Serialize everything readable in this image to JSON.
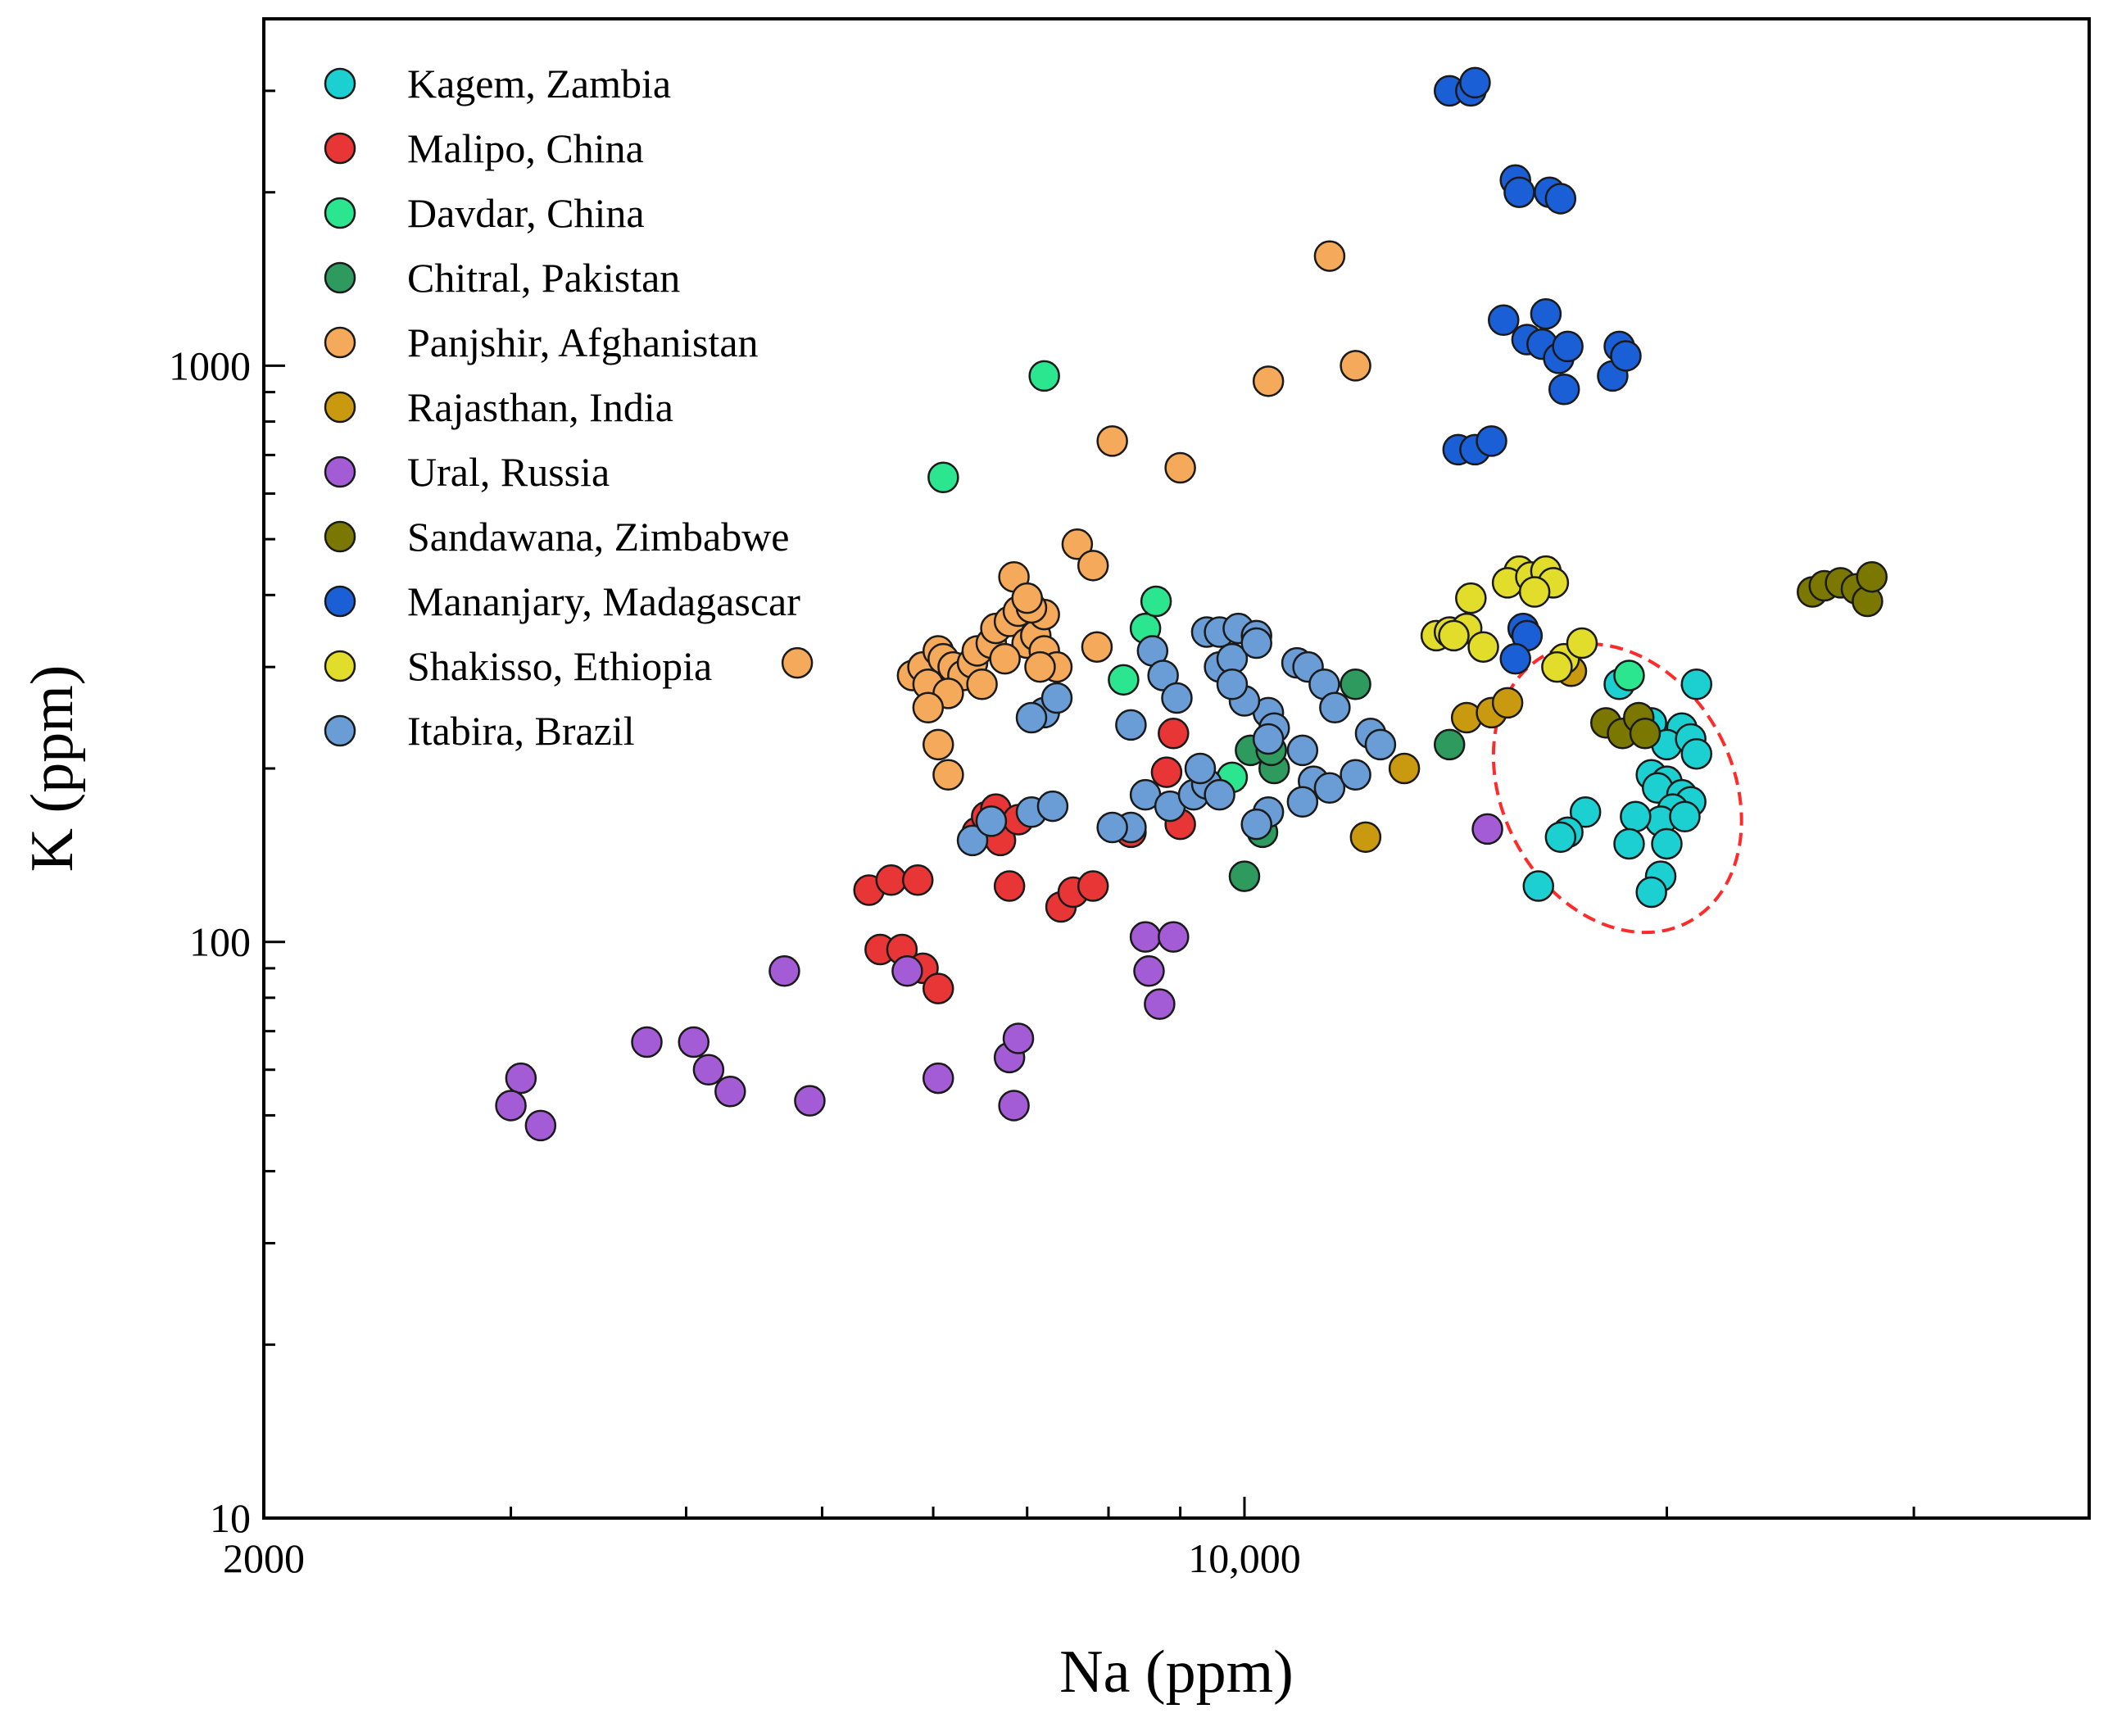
{
  "chart_data": {
    "type": "scatter",
    "xlabel": "Na (ppm)",
    "ylabel": "K (ppm)",
    "x_scale": "log",
    "y_scale": "log",
    "xlim": [
      2000,
      40000
    ],
    "ylim": [
      10,
      4000
    ],
    "x_ticks": [
      {
        "value": 2000,
        "label": "2000"
      },
      {
        "value": 10000,
        "label": "10,000"
      }
    ],
    "y_ticks": [
      {
        "value": 10,
        "label": "10"
      },
      {
        "value": 100,
        "label": "100"
      },
      {
        "value": 1000,
        "label": "1000"
      }
    ],
    "legend_position": "top-left",
    "annotation": {
      "type": "dashed-ellipse",
      "color": "#ff2a2a",
      "target_series": "Kagem, Zambia"
    },
    "series": [
      {
        "name": "Kagem, Zambia",
        "color": "#1ccfd0",
        "points": [
          [
            18500,
            280
          ],
          [
            21000,
            280
          ],
          [
            19500,
            240
          ],
          [
            20500,
            235
          ],
          [
            20000,
            220
          ],
          [
            20800,
            225
          ],
          [
            19500,
            195
          ],
          [
            20000,
            190
          ],
          [
            19700,
            185
          ],
          [
            20500,
            180
          ],
          [
            20800,
            175
          ],
          [
            20200,
            170
          ],
          [
            19800,
            162
          ],
          [
            20600,
            165
          ],
          [
            17500,
            168
          ],
          [
            19000,
            165
          ],
          [
            17000,
            155
          ],
          [
            16800,
            152
          ],
          [
            18800,
            148
          ],
          [
            20000,
            148
          ],
          [
            19800,
            130
          ],
          [
            19500,
            122
          ],
          [
            16200,
            125
          ],
          [
            21000,
            212
          ]
        ]
      },
      {
        "name": "Malipo, China",
        "color": "#e83535",
        "points": [
          [
            5400,
            123
          ],
          [
            5600,
            128
          ],
          [
            5850,
            128
          ],
          [
            5500,
            97
          ],
          [
            5700,
            97
          ],
          [
            5900,
            90
          ],
          [
            6050,
            83
          ],
          [
            6450,
            155
          ],
          [
            6550,
            165
          ],
          [
            6700,
            150
          ],
          [
            6650,
            170
          ],
          [
            6900,
            163
          ],
          [
            6800,
            125
          ],
          [
            7400,
            115
          ],
          [
            7550,
            122
          ],
          [
            7800,
            125
          ],
          [
            8300,
            155
          ],
          [
            8800,
            197
          ],
          [
            8900,
            230
          ],
          [
            9000,
            160
          ]
        ]
      },
      {
        "name": "Davdar, China",
        "color": "#2be58f",
        "points": [
          [
            7200,
            960
          ],
          [
            6100,
            640
          ],
          [
            8200,
            285
          ],
          [
            8500,
            350
          ],
          [
            8650,
            390
          ],
          [
            9800,
            193
          ],
          [
            18800,
            290
          ]
        ]
      },
      {
        "name": "Chitral, Pakistan",
        "color": "#2e9a5e",
        "points": [
          [
            12000,
            280
          ],
          [
            10100,
            215
          ],
          [
            10500,
            200
          ],
          [
            10450,
            215
          ],
          [
            14000,
            220
          ],
          [
            10300,
            155
          ],
          [
            10000,
            130
          ]
        ]
      },
      {
        "name": "Panjshir, Afghanistan",
        "color": "#f5a95a",
        "points": [
          [
            11500,
            1550
          ],
          [
            10400,
            940
          ],
          [
            12000,
            1000
          ],
          [
            8050,
            740
          ],
          [
            9000,
            665
          ],
          [
            7600,
            490
          ],
          [
            7800,
            450
          ],
          [
            7850,
            325
          ],
          [
            4800,
            305
          ],
          [
            5800,
            290
          ],
          [
            5900,
            300
          ],
          [
            5950,
            280
          ],
          [
            6050,
            320
          ],
          [
            6100,
            310
          ],
          [
            6200,
            300
          ],
          [
            6300,
            290
          ],
          [
            6150,
            270
          ],
          [
            5950,
            255
          ],
          [
            6050,
            220
          ],
          [
            6150,
            195
          ],
          [
            6400,
            305
          ],
          [
            6450,
            320
          ],
          [
            6600,
            330
          ],
          [
            6650,
            350
          ],
          [
            6800,
            360
          ],
          [
            6900,
            375
          ],
          [
            6850,
            430
          ],
          [
            7000,
            330
          ],
          [
            7100,
            340
          ],
          [
            7200,
            370
          ],
          [
            7200,
            320
          ],
          [
            7350,
            300
          ],
          [
            7150,
            300
          ],
          [
            7050,
            380
          ],
          [
            7000,
            395
          ],
          [
            6750,
            310
          ],
          [
            6500,
            280
          ]
        ]
      },
      {
        "name": "Rajasthan, India",
        "color": "#c99a10",
        "points": [
          [
            12200,
            152
          ],
          [
            13000,
            200
          ],
          [
            14400,
            245
          ],
          [
            15000,
            250
          ],
          [
            15400,
            260
          ],
          [
            17100,
            295
          ]
        ]
      },
      {
        "name": "Ural, Russia",
        "color": "#a45cd6",
        "points": [
          [
            3050,
            58
          ],
          [
            3000,
            52
          ],
          [
            3150,
            48
          ],
          [
            3750,
            67
          ],
          [
            4050,
            67
          ],
          [
            4150,
            60
          ],
          [
            4300,
            55
          ],
          [
            4700,
            89
          ],
          [
            4900,
            53
          ],
          [
            5750,
            89
          ],
          [
            6050,
            58
          ],
          [
            6800,
            63
          ],
          [
            6900,
            68
          ],
          [
            6850,
            52
          ],
          [
            8500,
            102
          ],
          [
            8900,
            102
          ],
          [
            8550,
            89
          ],
          [
            8700,
            78
          ],
          [
            14900,
            157
          ]
        ]
      },
      {
        "name": "Sandawana, Zimbabwe",
        "color": "#7a7800",
        "points": [
          [
            18100,
            240
          ],
          [
            18600,
            230
          ],
          [
            19100,
            245
          ],
          [
            19300,
            230
          ],
          [
            25400,
            405
          ],
          [
            25900,
            415
          ],
          [
            26600,
            420
          ],
          [
            27300,
            410
          ],
          [
            27800,
            390
          ],
          [
            28000,
            430
          ]
        ]
      },
      {
        "name": "Mananjary, Madagascar",
        "color": "#1b5fd6",
        "points": [
          [
            14000,
            3000
          ],
          [
            14500,
            3000
          ],
          [
            14600,
            3100
          ],
          [
            15600,
            2100
          ],
          [
            15700,
            2000
          ],
          [
            16500,
            2000
          ],
          [
            16800,
            1950
          ],
          [
            15300,
            1200
          ],
          [
            16400,
            1230
          ],
          [
            15900,
            1110
          ],
          [
            16300,
            1090
          ],
          [
            16750,
            1030
          ],
          [
            17000,
            1080
          ],
          [
            16900,
            910
          ],
          [
            18300,
            960
          ],
          [
            18500,
            1080
          ],
          [
            18700,
            1040
          ],
          [
            14200,
            715
          ],
          [
            14600,
            715
          ],
          [
            15000,
            740
          ],
          [
            15800,
            350
          ],
          [
            15900,
            340
          ],
          [
            15600,
            310
          ]
        ]
      },
      {
        "name": "Shakisso, Ethiopia",
        "color": "#e2dc2a",
        "points": [
          [
            13700,
            340
          ],
          [
            14000,
            345
          ],
          [
            14400,
            350
          ],
          [
            14100,
            340
          ],
          [
            14800,
            325
          ],
          [
            14500,
            395
          ],
          [
            15700,
            440
          ],
          [
            15400,
            420
          ],
          [
            16000,
            430
          ],
          [
            16400,
            440
          ],
          [
            16600,
            420
          ],
          [
            16100,
            405
          ],
          [
            16900,
            310
          ],
          [
            17400,
            330
          ],
          [
            16700,
            300
          ]
        ]
      },
      {
        "name": "Itabira, Brazil",
        "color": "#6a9cd6",
        "points": [
          [
            7200,
            250
          ],
          [
            7350,
            265
          ],
          [
            7050,
            245
          ],
          [
            8300,
            238
          ],
          [
            8600,
            320
          ],
          [
            8750,
            290
          ],
          [
            8950,
            265
          ],
          [
            9400,
            345
          ],
          [
            9600,
            345
          ],
          [
            9900,
            350
          ],
          [
            10200,
            340
          ],
          [
            9600,
            300
          ],
          [
            9800,
            310
          ],
          [
            10200,
            330
          ],
          [
            10900,
            305
          ],
          [
            11100,
            300
          ],
          [
            11400,
            280
          ],
          [
            11600,
            255
          ],
          [
            10400,
            250
          ],
          [
            10000,
            262
          ],
          [
            9800,
            280
          ],
          [
            10500,
            235
          ],
          [
            10400,
            225
          ],
          [
            11000,
            215
          ],
          [
            11200,
            190
          ],
          [
            11500,
            185
          ],
          [
            12000,
            195
          ],
          [
            12300,
            230
          ],
          [
            12500,
            220
          ],
          [
            8300,
            158
          ],
          [
            8500,
            180
          ],
          [
            8850,
            172
          ],
          [
            9200,
            180
          ],
          [
            9400,
            188
          ],
          [
            9300,
            200
          ],
          [
            9600,
            180
          ],
          [
            10400,
            168
          ],
          [
            11000,
            175
          ],
          [
            6400,
            150
          ],
          [
            6600,
            162
          ],
          [
            7050,
            168
          ],
          [
            7300,
            172
          ],
          [
            8050,
            158
          ],
          [
            10200,
            160
          ]
        ]
      }
    ]
  }
}
